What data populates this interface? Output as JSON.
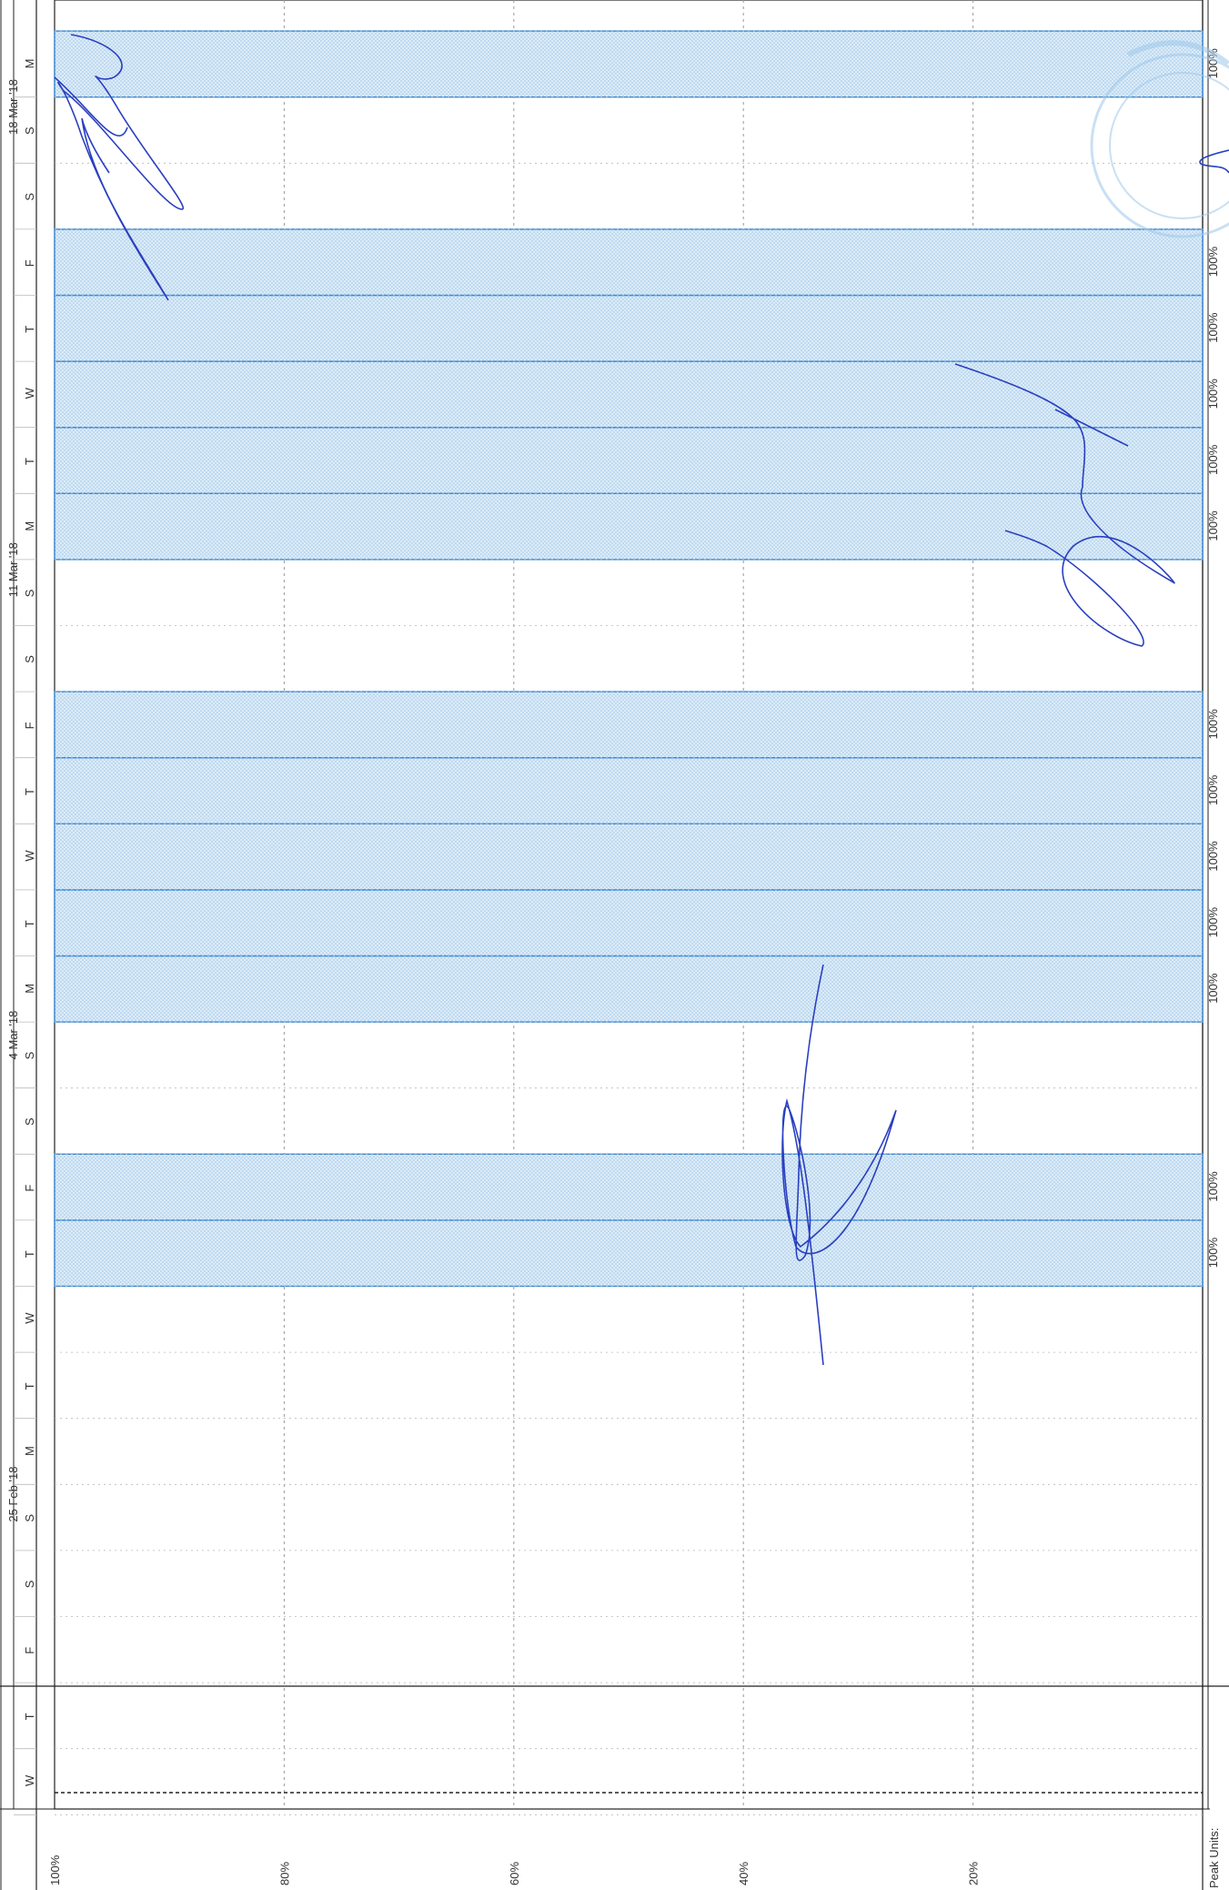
{
  "chart_data": {
    "type": "bar",
    "orientation": "rotated",
    "x": [
      "W",
      "T",
      "F",
      "S",
      "S",
      "M",
      "T",
      "W",
      "T",
      "F",
      "S",
      "S",
      "M",
      "T",
      "W",
      "T",
      "F",
      "S",
      "S",
      "M",
      "T",
      "W",
      "T",
      "F",
      "S",
      "S",
      "M"
    ],
    "week_labels": [
      {
        "day_index": 4,
        "label": "25 Feb '18"
      },
      {
        "day_index": 11,
        "label": "4 Mar '18"
      },
      {
        "day_index": 18,
        "label": "11 Mar '18"
      },
      {
        "day_index": 25,
        "label": "18 Mar '18"
      }
    ],
    "values": [
      0,
      0,
      0,
      0,
      0,
      0,
      0,
      0,
      100,
      100,
      0,
      0,
      100,
      100,
      100,
      100,
      100,
      0,
      0,
      100,
      100,
      100,
      100,
      100,
      0,
      0,
      100
    ],
    "bar_labels": [
      "",
      "",
      "",
      "",
      "",
      "",
      "",
      "",
      "100%",
      "100%",
      "",
      "",
      "100%",
      "100%",
      "100%",
      "100%",
      "100%",
      "",
      "",
      "100%",
      "100%",
      "100%",
      "100%",
      "100%",
      "",
      "",
      "100%"
    ],
    "ylabel": "Peak Units:",
    "yticks": [
      "100%",
      "80%",
      "60%",
      "40%",
      "20%"
    ],
    "ylim": [
      0,
      100
    ],
    "grid": true,
    "colors": {
      "bar_fill": "#d4e8f6",
      "bar_stroke": "#3a8ad6",
      "axis": "#222222",
      "grid": "#9a9a9a",
      "ink": "#2a3fc0",
      "stamp": "#9ec8ea"
    }
  }
}
